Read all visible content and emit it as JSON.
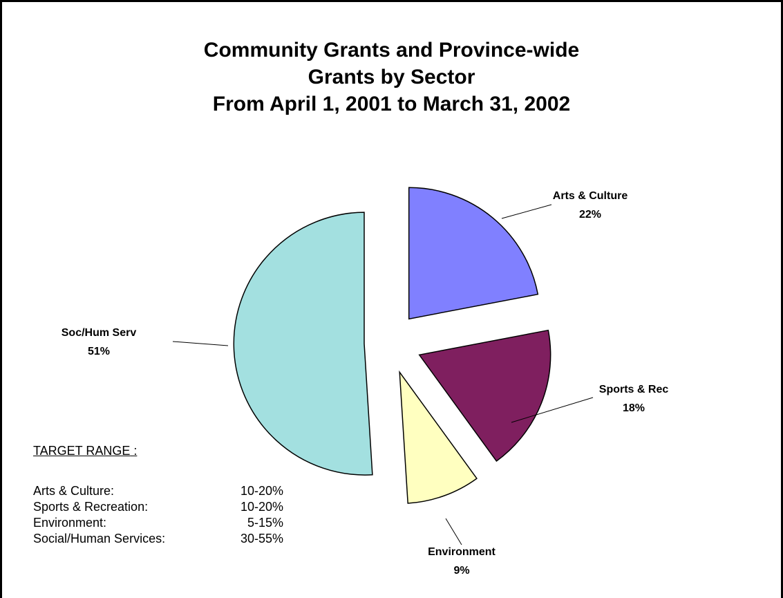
{
  "chart_data": {
    "type": "pie",
    "title_lines": [
      "Community Grants and Province-wide",
      "Grants by Sector",
      "From April 1, 2001 to March 31, 2002"
    ],
    "slices": [
      {
        "label": "Arts & Culture",
        "value_text": "22%",
        "value": 22,
        "color": "#8080FF"
      },
      {
        "label": "Sports & Rec",
        "value_text": "18%",
        "value": 18,
        "color": "#7F1F5F"
      },
      {
        "label": "Environment",
        "value_text": "9%",
        "value": 9,
        "color": "#FFFFC0"
      },
      {
        "label": "Soc/Hum Serv",
        "value_text": "51%",
        "value": 51,
        "color": "#A3E0E0"
      }
    ],
    "exploded": true,
    "legend": "none"
  },
  "target_range": {
    "heading": "TARGET RANGE",
    "colon": " :",
    "rows": [
      {
        "name": "Arts & Culture:",
        "range": "10-20%"
      },
      {
        "name": "Sports & Recreation:",
        "range": "10-20%"
      },
      {
        "name": "Environment:",
        "range": "5-15%"
      },
      {
        "name": "Social/Human Services:",
        "range": "30-55%"
      }
    ]
  }
}
